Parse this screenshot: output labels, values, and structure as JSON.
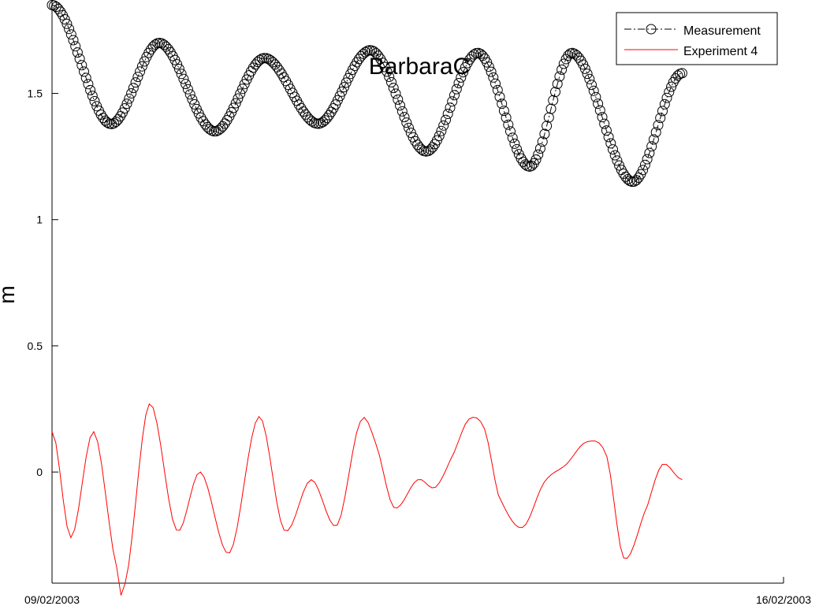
{
  "chart_data": {
    "type": "line",
    "title": "BarbaraC",
    "xlabel": "",
    "ylabel": "m",
    "x_ticks": [
      "09/02/2003",
      "16/02/2003"
    ],
    "y_ticks": [
      "0",
      "0.5",
      "1",
      "1.5"
    ],
    "xlim": [
      "2003-02-09",
      "2003-02-16"
    ],
    "ylim": [
      -0.44,
      1.87
    ],
    "grid": false,
    "legend_position": "top-right",
    "series": [
      {
        "name": "Measurement",
        "style": "dash-dot line with circle markers",
        "color": "#000000",
        "x_days": [
          0,
          0.55,
          1.03,
          1.55,
          2.03,
          2.55,
          3.06,
          3.58,
          4.08,
          4.57,
          4.98,
          5.55,
          6.03
        ],
        "y": [
          1.85,
          1.38,
          1.7,
          1.35,
          1.64,
          1.38,
          1.67,
          1.27,
          1.66,
          1.21,
          1.66,
          1.15,
          1.58
        ]
      },
      {
        "name": "Experiment 4",
        "style": "solid line",
        "color": "#ff0000",
        "x_days": [
          0,
          0.18,
          0.4,
          0.62,
          0.7,
          0.93,
          1.19,
          1.42,
          1.7,
          1.98,
          2.22,
          2.48,
          2.73,
          2.95,
          3.1,
          3.27,
          3.5,
          3.67,
          3.85,
          3.99,
          4.14,
          4.27,
          4.5,
          4.71,
          4.92,
          5.12,
          5.31,
          5.47,
          5.7,
          5.84,
          6.03
        ],
        "y": [
          0.16,
          -0.26,
          0.16,
          -0.38,
          -0.44,
          0.27,
          -0.23,
          0.0,
          -0.32,
          0.22,
          -0.23,
          -0.03,
          -0.21,
          0.2,
          0.11,
          -0.14,
          -0.03,
          -0.06,
          0.08,
          0.21,
          0.17,
          -0.09,
          -0.22,
          -0.04,
          0.03,
          0.12,
          0.06,
          -0.34,
          -0.13,
          0.03,
          -0.03
        ]
      }
    ]
  }
}
